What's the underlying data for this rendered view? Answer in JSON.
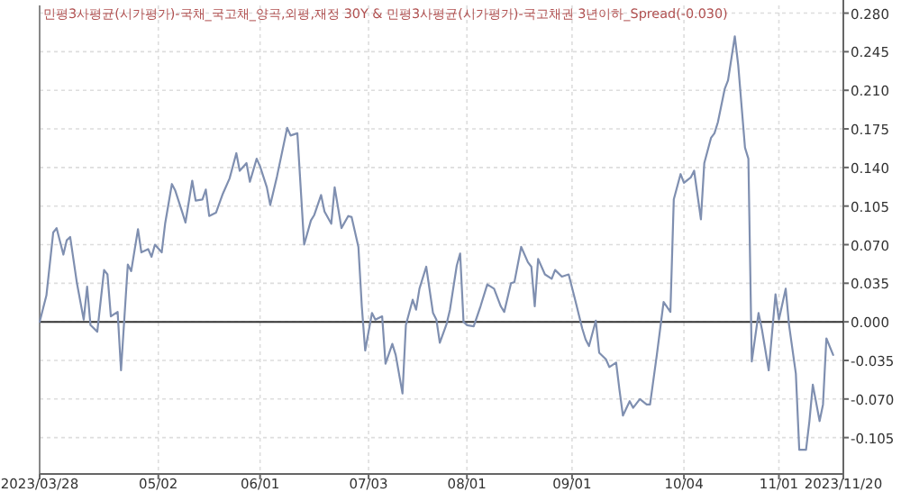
{
  "chart_data": {
    "type": "line",
    "title": "민평3사평균(시가평가)-국채_국고채_양곡,외평,재정 30Y & 민평3사평균(시가평가)-국고채권 3년이하_Spread(-0.030)",
    "x": [
      "2023-03-28",
      "2023-03-30",
      "2023-04-01",
      "2023-04-02",
      "2023-04-04",
      "2023-04-05",
      "2023-04-06",
      "2023-04-08",
      "2023-04-10",
      "2023-04-11",
      "2023-04-12",
      "2023-04-14",
      "2023-04-16",
      "2023-04-17",
      "2023-04-18",
      "2023-04-20",
      "2023-04-21",
      "2023-04-23",
      "2023-04-24",
      "2023-04-26",
      "2023-04-27",
      "2023-04-29",
      "2023-04-30",
      "2023-05-01",
      "2023-05-03",
      "2023-05-04",
      "2023-05-06",
      "2023-05-07",
      "2023-05-09",
      "2023-05-10",
      "2023-05-12",
      "2023-05-13",
      "2023-05-15",
      "2023-05-16",
      "2023-05-17",
      "2023-05-19",
      "2023-05-21",
      "2023-05-23",
      "2023-05-25",
      "2023-05-26",
      "2023-05-28",
      "2023-05-29",
      "2023-05-31",
      "2023-06-01",
      "2023-06-03",
      "2023-06-04",
      "2023-06-06",
      "2023-06-09",
      "2023-06-10",
      "2023-06-12",
      "2023-06-14",
      "2023-06-16",
      "2023-06-17",
      "2023-06-19",
      "2023-06-20",
      "2023-06-22",
      "2023-06-23",
      "2023-06-25",
      "2023-06-27",
      "2023-06-28",
      "2023-06-30",
      "2023-07-01",
      "2023-07-02",
      "2023-07-04",
      "2023-07-05",
      "2023-07-07",
      "2023-07-08",
      "2023-07-10",
      "2023-07-11",
      "2023-07-13",
      "2023-07-14",
      "2023-07-16",
      "2023-07-17",
      "2023-07-18",
      "2023-07-20",
      "2023-07-22",
      "2023-07-23",
      "2023-07-24",
      "2023-07-26",
      "2023-07-27",
      "2023-07-29",
      "2023-07-30",
      "2023-07-31",
      "2023-08-01",
      "2023-08-03",
      "2023-08-05",
      "2023-08-07",
      "2023-08-09",
      "2023-08-11",
      "2023-08-12",
      "2023-08-14",
      "2023-08-15",
      "2023-08-17",
      "2023-08-19",
      "2023-08-20",
      "2023-08-21",
      "2023-08-22",
      "2023-08-24",
      "2023-08-26",
      "2023-08-27",
      "2023-08-29",
      "2023-08-30",
      "2023-08-31",
      "2023-09-02",
      "2023-09-04",
      "2023-09-05",
      "2023-09-06",
      "2023-09-08",
      "2023-09-09",
      "2023-09-11",
      "2023-09-12",
      "2023-09-14",
      "2023-09-15",
      "2023-09-16",
      "2023-09-18",
      "2023-09-19",
      "2023-09-21",
      "2023-09-23",
      "2023-09-24",
      "2023-09-26",
      "2023-09-27",
      "2023-09-28",
      "2023-09-30",
      "2023-10-01",
      "2023-10-03",
      "2023-10-04",
      "2023-10-06",
      "2023-10-07",
      "2023-10-09",
      "2023-10-10",
      "2023-10-12",
      "2023-10-13",
      "2023-10-14",
      "2023-10-16",
      "2023-10-17",
      "2023-10-19",
      "2023-10-20",
      "2023-10-22",
      "2023-10-23",
      "2023-10-24",
      "2023-10-26",
      "2023-10-27",
      "2023-10-29",
      "2023-10-31",
      "2023-11-01",
      "2023-11-03",
      "2023-11-04",
      "2023-11-06",
      "2023-11-07",
      "2023-11-09",
      "2023-11-10",
      "2023-11-11",
      "2023-11-13",
      "2023-11-14",
      "2023-11-15",
      "2023-11-17"
    ],
    "series": [
      {
        "color": "#7f8fb0",
        "values": [
          0,
          0.024,
          0.081,
          0.085,
          0.061,
          0.074,
          0.077,
          0.035,
          0.002,
          0.032,
          -0.003,
          -0.009,
          0.047,
          0.043,
          0.005,
          0.009,
          -0.044,
          0.052,
          0.046,
          0.084,
          0.063,
          0.066,
          0.059,
          0.07,
          0.063,
          0.089,
          0.125,
          0.119,
          0.1,
          0.09,
          0.128,
          0.11,
          0.111,
          0.12,
          0.096,
          0.099,
          0.116,
          0.13,
          0.153,
          0.137,
          0.144,
          0.127,
          0.148,
          0.141,
          0.122,
          0.106,
          0.132,
          0.176,
          0.169,
          0.171,
          0.07,
          0.092,
          0.097,
          0.115,
          0.1,
          0.089,
          0.122,
          0.085,
          0.096,
          0.095,
          0.068,
          0.014,
          -0.026,
          0.008,
          0.002,
          0.005,
          -0.038,
          -0.02,
          -0.03,
          -0.065,
          -0.003,
          0.02,
          0.011,
          0.03,
          0.05,
          0.008,
          0.002,
          -0.019,
          -0.002,
          0.011,
          0.051,
          0.062,
          0,
          -0.003,
          -0.004,
          0.014,
          0.034,
          0.03,
          0.014,
          0.009,
          0.035,
          0.036,
          0.068,
          0.054,
          0.05,
          0.014,
          0.057,
          0.043,
          0.039,
          0.047,
          0.041,
          0.042,
          0.043,
          0.019,
          -0.006,
          -0.016,
          -0.022,
          0.001,
          -0.028,
          -0.034,
          -0.041,
          -0.037,
          -0.062,
          -0.085,
          -0.072,
          -0.078,
          -0.07,
          -0.075,
          -0.075,
          -0.03,
          -0.006,
          0.018,
          0.009,
          0.111,
          0.134,
          0.126,
          0.131,
          0.137,
          0.093,
          0.144,
          0.167,
          0.171,
          0.181,
          0.211,
          0.219,
          0.259,
          0.233,
          0.158,
          0.148,
          -0.036,
          0.008,
          -0.007,
          -0.044,
          0.025,
          0.002,
          0.03,
          -0.003,
          -0.047,
          -0.116,
          -0.116,
          -0.09,
          -0.057,
          -0.09,
          -0.075,
          -0.015,
          -0.03
        ]
      }
    ],
    "xlim": [
      "2023-03-28",
      "2023-11-20"
    ],
    "xticks": [
      {
        "value": "2023-03-28",
        "label": "2023/03/28"
      },
      {
        "value": "2023-05-02",
        "label": "05/02"
      },
      {
        "value": "2023-06-01",
        "label": "06/01"
      },
      {
        "value": "2023-07-03",
        "label": "07/03"
      },
      {
        "value": "2023-08-01",
        "label": "08/01"
      },
      {
        "value": "2023-09-01",
        "label": "09/01"
      },
      {
        "value": "2023-10-04",
        "label": "10/04"
      },
      {
        "value": "2023-11-01",
        "label": "11/01"
      },
      {
        "value": "2023-11-20",
        "label": "2023/11/20"
      }
    ],
    "ylim": [
      -0.138,
      0.287
    ],
    "yticks": [
      {
        "value": 0.28,
        "label": "0.280"
      },
      {
        "value": 0.245,
        "label": "0.245"
      },
      {
        "value": 0.21,
        "label": "0.210"
      },
      {
        "value": 0.175,
        "label": "0.175"
      },
      {
        "value": 0.14,
        "label": "0.140"
      },
      {
        "value": 0.105,
        "label": "0.105"
      },
      {
        "value": 0.07,
        "label": "0.070"
      },
      {
        "value": 0.035,
        "label": "0.035"
      },
      {
        "value": 0,
        "label": "0.000"
      },
      {
        "value": -0.035,
        "label": "-0.035"
      },
      {
        "value": -0.07,
        "label": "-0.070"
      },
      {
        "value": -0.105,
        "label": "-0.105"
      }
    ],
    "ref_lines": [
      {
        "axis": "y",
        "value": 0,
        "color": "#333333"
      }
    ],
    "grid": true
  }
}
